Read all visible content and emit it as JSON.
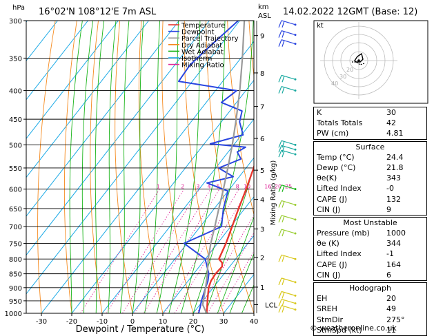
{
  "header": {
    "hpa_label": "hPa",
    "location": "16°02'N 108°12'E 7m ASL",
    "km_label": "km",
    "asl_label": "ASL",
    "datetime": "14.02.2022 12GMT (Base: 12)"
  },
  "legend": [
    {
      "label": "Temperature",
      "color": "#e8362d"
    },
    {
      "label": "Dewpoint",
      "color": "#2a45e0"
    },
    {
      "label": "Parcel Trajectory",
      "color": "#9a9a9a"
    },
    {
      "label": "Dry Adiabat",
      "color": "#f58a1e"
    },
    {
      "label": "Wet Adiabat",
      "color": "#19b419"
    },
    {
      "label": "Isotherm",
      "color": "#19a9e6"
    },
    {
      "label": "Mixing Ratio",
      "color": "#e0289a"
    }
  ],
  "chart_data": {
    "type": "line",
    "title": "16°02'N 108°12'E 7m ASL",
    "xlabel": "Dewpoint / Temperature (°C)",
    "ylabel": "hPa",
    "y2label": "Mixing Ratio (g/kg)",
    "xlim": [
      -35,
      40
    ],
    "ylim": [
      1000,
      300
    ],
    "x_ticks": [
      -30,
      -20,
      -10,
      0,
      10,
      20,
      30,
      40
    ],
    "pressure_ticks": [
      300,
      350,
      400,
      450,
      500,
      550,
      600,
      650,
      700,
      750,
      800,
      850,
      900,
      950,
      1000
    ],
    "km_ticks": [
      {
        "label": "1",
        "p": 898
      },
      {
        "label": "2",
        "p": 795
      },
      {
        "label": "3",
        "p": 707
      },
      {
        "label": "4",
        "p": 626
      },
      {
        "label": "5",
        "p": 555
      },
      {
        "label": "6",
        "p": 487
      },
      {
        "label": "7",
        "p": 427
      },
      {
        "label": "8",
        "p": 372
      },
      {
        "label": "9",
        "p": 319
      }
    ],
    "lcl": {
      "label": "LCL",
      "p": 965
    },
    "mixing_ratio_labels": [
      "1",
      "2",
      "3",
      "4",
      "5",
      "8",
      "10",
      "16",
      "20",
      "25"
    ],
    "series": [
      {
        "name": "Temperature",
        "points": [
          [
            24.4,
            1000
          ],
          [
            23.0,
            975
          ],
          [
            21.5,
            950
          ],
          [
            20.0,
            925
          ],
          [
            18.5,
            900
          ],
          [
            17.5,
            875
          ],
          [
            17.2,
            850
          ],
          [
            17.5,
            825
          ],
          [
            16.5,
            812
          ],
          [
            14.5,
            800
          ],
          [
            12.8,
            750
          ],
          [
            10.5,
            700
          ],
          [
            8.0,
            650
          ],
          [
            5.5,
            600
          ],
          [
            2.5,
            550
          ],
          [
            -1.0,
            500
          ],
          [
            -5.0,
            450
          ],
          [
            -9.5,
            400
          ],
          [
            -13.8,
            375
          ],
          [
            -18.5,
            350
          ]
        ]
      },
      {
        "name": "Dewpoint",
        "points": [
          [
            21.8,
            1000
          ],
          [
            20.7,
            975
          ],
          [
            19.5,
            950
          ],
          [
            18.5,
            925
          ],
          [
            17.5,
            900
          ],
          [
            16.5,
            875
          ],
          [
            15.0,
            850
          ],
          [
            10.0,
            800
          ],
          [
            -1.0,
            750
          ],
          [
            7.0,
            700
          ],
          [
            3.0,
            650
          ],
          [
            0.0,
            605
          ],
          [
            -9.0,
            585
          ],
          [
            -2.0,
            570
          ],
          [
            -9.0,
            550
          ],
          [
            -4.0,
            530
          ],
          [
            -7.0,
            515
          ],
          [
            -5.5,
            505
          ],
          [
            -18.0,
            498
          ],
          [
            -9.5,
            480
          ],
          [
            -14.0,
            455
          ],
          [
            -16.0,
            435
          ],
          [
            -25.0,
            420
          ],
          [
            -23.0,
            400
          ],
          [
            -44.5,
            385
          ],
          [
            -45.0,
            360
          ],
          [
            -43.0,
            330
          ],
          [
            -40.5,
            300
          ]
        ]
      },
      {
        "name": "Parcel Trajectory",
        "points": [
          [
            24.4,
            1000
          ],
          [
            20.9,
            965
          ],
          [
            17.5,
            900
          ],
          [
            14.5,
            850
          ],
          [
            11.0,
            800
          ],
          [
            7.8,
            750
          ],
          [
            4.8,
            700
          ],
          [
            1.5,
            650
          ],
          [
            -2.0,
            600
          ],
          [
            -6.0,
            550
          ],
          [
            -10.5,
            500
          ],
          [
            -15.8,
            450
          ],
          [
            -22.0,
            400
          ],
          [
            -29.5,
            350
          ],
          [
            -38.5,
            300
          ]
        ]
      }
    ]
  },
  "hodograph": {
    "unit_label": "kt",
    "rings": [
      {
        "label": "20",
        "radius_kt": 20
      },
      {
        "label": "30",
        "radius_kt": 30
      },
      {
        "label": "40",
        "radius_kt": 40
      }
    ]
  },
  "indices": {
    "K": {
      "label": "K",
      "value": "30"
    },
    "TT": {
      "label": "Totals Totals",
      "value": "42"
    },
    "PW": {
      "label": "PW (cm)",
      "value": "4.81"
    }
  },
  "surface": {
    "title": "Surface",
    "rows": [
      {
        "label": "Temp (°C)",
        "value": "24.4"
      },
      {
        "label": "Dewp (°C)",
        "value": "21.8"
      },
      {
        "label": "θe(K)",
        "value": "343"
      },
      {
        "label": "Lifted Index",
        "value": "-0"
      },
      {
        "label": "CAPE (J)",
        "value": "132"
      },
      {
        "label": "CIN (J)",
        "value": "9"
      }
    ]
  },
  "unstable": {
    "title": "Most Unstable",
    "rows": [
      {
        "label": "Pressure (mb)",
        "value": "1000"
      },
      {
        "label": "θe (K)",
        "value": "344"
      },
      {
        "label": "Lifted Index",
        "value": "-1"
      },
      {
        "label": "CAPE (J)",
        "value": "164"
      },
      {
        "label": "CIN (J)",
        "value": "6"
      }
    ]
  },
  "hodo_params": {
    "title": "Hodograph",
    "rows": [
      {
        "label": "EH",
        "value": "20"
      },
      {
        "label": "SREH",
        "value": "49"
      },
      {
        "label": "StmDir",
        "value": "275°"
      },
      {
        "label": "StmSpd (kt)",
        "value": "11"
      }
    ]
  },
  "copyright": "© weatheronline.co.uk"
}
